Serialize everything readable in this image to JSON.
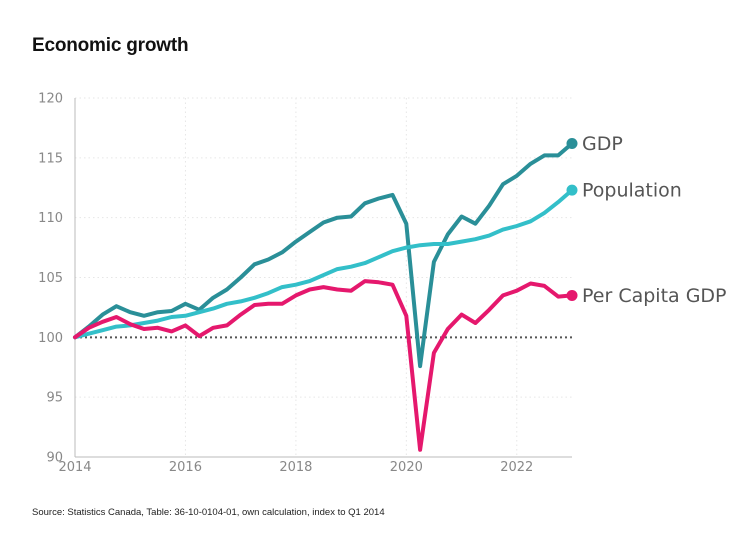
{
  "title": "Economic growth",
  "source": "Source: Statistics Canada, Table: 36-10-0104-01, own calculation, index to Q1 2014",
  "chart_data": {
    "type": "line",
    "title": "Economic growth",
    "xlabel": "",
    "ylabel": "",
    "xlim": [
      2014,
      2023
    ],
    "ylim": [
      90,
      120
    ],
    "xticks": [
      "2014",
      "2016",
      "2018",
      "2020",
      "2022"
    ],
    "yticks": [
      "90",
      "95",
      "100",
      "105",
      "110",
      "115",
      "120"
    ],
    "grid": true,
    "reference_line": 100,
    "x": [
      2014.0,
      2014.25,
      2014.5,
      2014.75,
      2015.0,
      2015.25,
      2015.5,
      2015.75,
      2016.0,
      2016.25,
      2016.5,
      2016.75,
      2017.0,
      2017.25,
      2017.5,
      2017.75,
      2018.0,
      2018.25,
      2018.5,
      2018.75,
      2019.0,
      2019.25,
      2019.5,
      2019.75,
      2020.0,
      2020.25,
      2020.5,
      2020.75,
      2021.0,
      2021.25,
      2021.5,
      2021.75,
      2022.0,
      2022.25,
      2022.5,
      2022.75,
      2023.0
    ],
    "series": [
      {
        "name": "GDP",
        "color": "#2a8f98",
        "values": [
          100.0,
          100.9,
          101.9,
          102.6,
          102.1,
          101.8,
          102.1,
          102.2,
          102.8,
          102.3,
          103.3,
          104.0,
          105.0,
          106.1,
          106.5,
          107.1,
          108.0,
          108.8,
          109.6,
          110.0,
          110.1,
          111.2,
          111.6,
          111.9,
          109.5,
          97.6,
          106.3,
          108.6,
          110.1,
          109.5,
          111.0,
          112.8,
          113.5,
          114.5,
          115.2,
          115.2,
          116.2
        ]
      },
      {
        "name": "Population",
        "color": "#33bfc9",
        "values": [
          100.0,
          100.3,
          100.6,
          100.9,
          101.0,
          101.2,
          101.4,
          101.7,
          101.8,
          102.1,
          102.4,
          102.8,
          103.0,
          103.3,
          103.7,
          104.2,
          104.4,
          104.7,
          105.2,
          105.7,
          105.9,
          106.2,
          106.7,
          107.2,
          107.5,
          107.7,
          107.8,
          107.8,
          108.0,
          108.2,
          108.5,
          109.0,
          109.3,
          109.7,
          110.4,
          111.3,
          112.3
        ]
      },
      {
        "name": "Per Capita GDP",
        "color": "#e5186d",
        "values": [
          100.0,
          100.8,
          101.3,
          101.7,
          101.1,
          100.7,
          100.8,
          100.5,
          101.0,
          100.1,
          100.8,
          101.0,
          101.9,
          102.7,
          102.8,
          102.8,
          103.5,
          104.0,
          104.2,
          104.0,
          103.9,
          104.7,
          104.6,
          104.4,
          101.8,
          90.6,
          98.7,
          100.7,
          101.9,
          101.2,
          102.3,
          103.5,
          103.9,
          104.5,
          104.3,
          103.4,
          103.5
        ]
      }
    ]
  }
}
